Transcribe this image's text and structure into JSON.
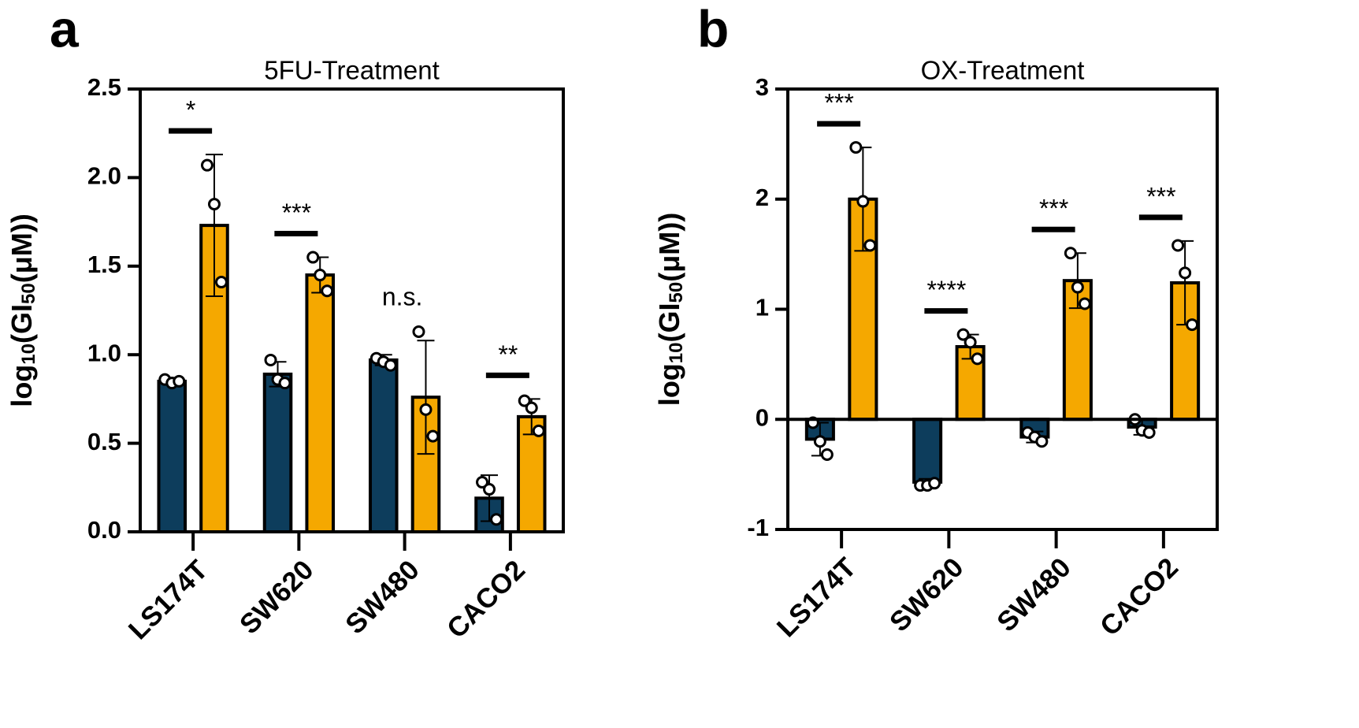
{
  "chart_data": [
    {
      "type": "bar",
      "panel_label": "a",
      "title": "5FU-Treatment",
      "ylabel": [
        "log",
        "10",
        "(GI",
        "50",
        "(μM))"
      ],
      "categories": [
        "LS174T",
        "SW620",
        "SW480",
        "CACO2"
      ],
      "ylim": [
        0,
        2.5
      ],
      "yticks": [
        {
          "value": 0,
          "label": "0.0"
        },
        0.5,
        {
          "value": 1,
          "label": "1.0"
        },
        1.5,
        {
          "value": 2,
          "label": "2.0"
        },
        2.5
      ],
      "series": [
        {
          "color": "#0d3d5c",
          "values": [
            0.85,
            0.89,
            0.97,
            0.19
          ],
          "errors": [
            0.02,
            0.07,
            0.03,
            0.13
          ],
          "points": [
            [
              0.86,
              0.84,
              0.85
            ],
            [
              0.97,
              0.86,
              0.84
            ],
            [
              0.98,
              0.96,
              0.94
            ],
            [
              0.28,
              0.24,
              0.07
            ]
          ]
        },
        {
          "color": "#f5a800",
          "values": [
            1.73,
            1.45,
            0.76,
            0.65
          ],
          "errors": [
            0.4,
            0.1,
            0.32,
            0.1
          ],
          "points": [
            [
              2.07,
              1.85,
              1.41
            ],
            [
              1.55,
              1.45,
              1.36
            ],
            [
              1.13,
              0.69,
              0.54
            ],
            [
              0.74,
              0.7,
              0.57
            ]
          ]
        }
      ],
      "significance": [
        "*",
        "***",
        "n.s.",
        "**"
      ],
      "significance_bar": [
        true,
        true,
        false,
        true
      ]
    },
    {
      "type": "bar",
      "panel_label": "b",
      "title": "OX-Treatment",
      "ylabel": [
        "log",
        "10",
        "(GI",
        "50",
        "(μM))"
      ],
      "categories": [
        "LS174T",
        "SW620",
        "SW480",
        "CACO2"
      ],
      "ylim": [
        -1,
        3
      ],
      "yticks": [
        -1,
        0,
        1,
        2,
        3
      ],
      "series": [
        {
          "color": "#0d3d5c",
          "values": [
            -0.18,
            -0.57,
            -0.16,
            -0.07
          ],
          "errors": [
            0.15,
            0.03,
            0.05,
            0.07
          ],
          "points": [
            [
              -0.03,
              -0.2,
              -0.32
            ],
            [
              -0.6,
              -0.6,
              -0.58
            ],
            [
              -0.12,
              -0.16,
              -0.2
            ],
            [
              0.0,
              -0.1,
              -0.12
            ]
          ]
        },
        {
          "color": "#f5a800",
          "values": [
            2.0,
            0.66,
            1.26,
            1.24
          ],
          "errors": [
            0.47,
            0.11,
            0.25,
            0.38
          ],
          "points": [
            [
              2.47,
              1.98,
              1.58
            ],
            [
              0.77,
              0.7,
              0.55
            ],
            [
              1.51,
              1.2,
              1.05
            ],
            [
              1.58,
              1.33,
              0.86
            ]
          ]
        }
      ],
      "significance": [
        "***",
        "****",
        "***",
        "***"
      ],
      "significance_bar": [
        true,
        true,
        true,
        true
      ]
    }
  ]
}
